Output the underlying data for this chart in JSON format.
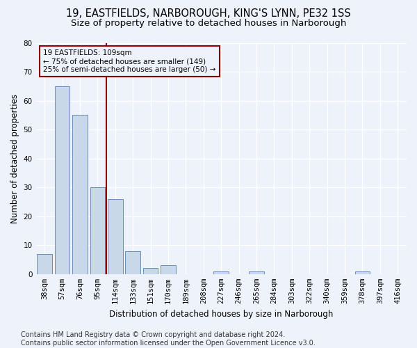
{
  "title1": "19, EASTFIELDS, NARBOROUGH, KING'S LYNN, PE32 1SS",
  "title2": "Size of property relative to detached houses in Narborough",
  "xlabel": "Distribution of detached houses by size in Narborough",
  "ylabel": "Number of detached properties",
  "categories": [
    "38sqm",
    "57sqm",
    "76sqm",
    "95sqm",
    "114sqm",
    "133sqm",
    "151sqm",
    "170sqm",
    "189sqm",
    "208sqm",
    "227sqm",
    "246sqm",
    "265sqm",
    "284sqm",
    "303sqm",
    "322sqm",
    "340sqm",
    "359sqm",
    "378sqm",
    "397sqm",
    "416sqm"
  ],
  "values": [
    7,
    65,
    55,
    30,
    26,
    8,
    2,
    3,
    0,
    0,
    1,
    0,
    1,
    0,
    0,
    0,
    0,
    0,
    1,
    0,
    0
  ],
  "bar_color": "#c8d8e8",
  "bar_edge_color": "#5580b0",
  "vline_index": 4,
  "vline_color": "#900000",
  "annotation_line1": "19 EASTFIELDS: 109sqm",
  "annotation_line2": "← 75% of detached houses are smaller (149)",
  "annotation_line3": "25% of semi-detached houses are larger (50) →",
  "annotation_box_color": "#900000",
  "ylim": [
    0,
    80
  ],
  "yticks": [
    0,
    10,
    20,
    30,
    40,
    50,
    60,
    70,
    80
  ],
  "footer": "Contains HM Land Registry data © Crown copyright and database right 2024.\nContains public sector information licensed under the Open Government Licence v3.0.",
  "background_color": "#eef2fb",
  "grid_color": "#ffffff",
  "title_fontsize": 10.5,
  "subtitle_fontsize": 9.5,
  "label_fontsize": 8.5,
  "tick_fontsize": 7.5,
  "footer_fontsize": 7
}
